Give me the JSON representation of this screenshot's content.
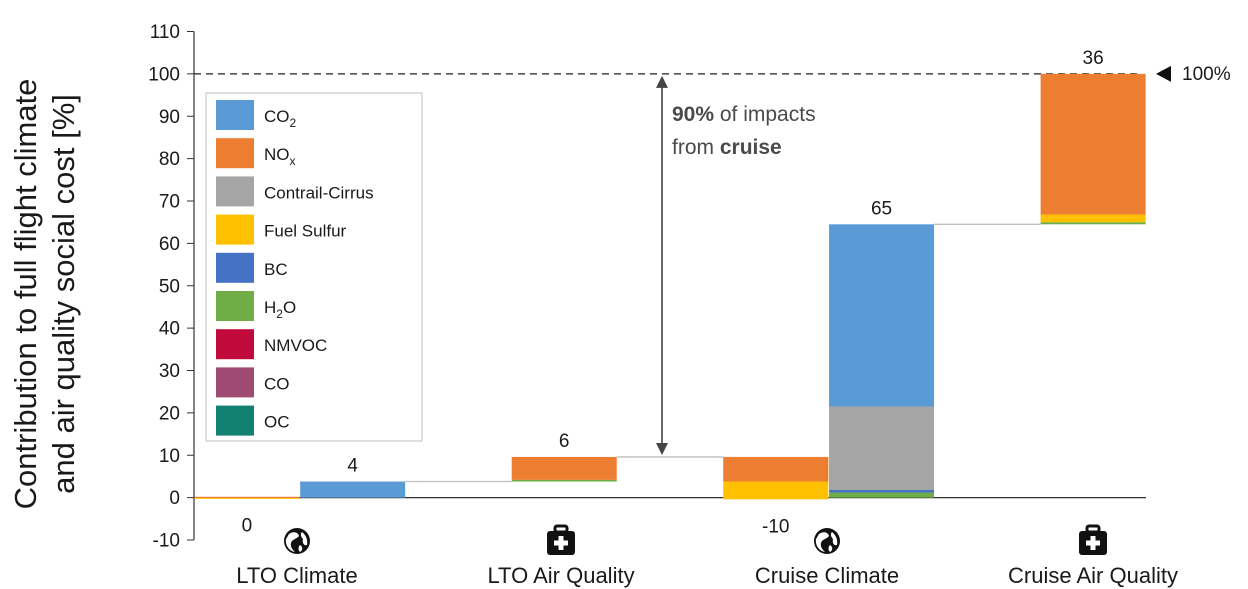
{
  "chart_data": {
    "type": "waterfall",
    "ylabel_line1": "Contribution to full flight climate",
    "ylabel_line2": "and air quality social cost [%]",
    "ylim": [
      -10,
      110
    ],
    "yticks": [
      "-10",
      "0",
      "10",
      "20",
      "30",
      "40",
      "50",
      "60",
      "70",
      "80",
      "90",
      "100",
      "110"
    ],
    "categories": [
      {
        "label": "LTO Climate",
        "icon": "globe-icon"
      },
      {
        "label": "LTO Air Quality",
        "icon": "medical-kit-icon"
      },
      {
        "label": "Cruise Climate",
        "icon": "globe-icon"
      },
      {
        "label": "Cruise Air Quality",
        "icon": "medical-kit-icon"
      }
    ],
    "species": [
      {
        "key": "co2",
        "label": "CO",
        "sub": "2",
        "color": "#5b9bd5"
      },
      {
        "key": "nox",
        "label": "NO",
        "sub": "x",
        "color": "#ed7d31"
      },
      {
        "key": "contrail",
        "label": "Contrail-Cirrus",
        "sub": "",
        "color": "#a5a5a5"
      },
      {
        "key": "sulfur",
        "label": "Fuel Sulfur",
        "sub": "",
        "color": "#ffc000"
      },
      {
        "key": "bc",
        "label": "BC",
        "sub": "",
        "color": "#4472c4"
      },
      {
        "key": "h2o",
        "label": "H",
        "sub": "2",
        "tail": "O",
        "color": "#70ad47"
      },
      {
        "key": "nmvoc",
        "label": "NMVOC",
        "sub": "",
        "color": "#c00a3c"
      },
      {
        "key": "co",
        "label": "CO",
        "sub": "",
        "color": "#9e4a72"
      },
      {
        "key": "oc",
        "label": "OC",
        "sub": "",
        "color": "#138074"
      }
    ],
    "bars": [
      {
        "slot": 0,
        "label": "0",
        "label_at": "below",
        "segments": [
          {
            "s": "sulfur",
            "from": 0,
            "to": -0.2
          },
          {
            "s": "nox",
            "from": 0,
            "to": 0.2
          }
        ]
      },
      {
        "slot": 1,
        "label": "4",
        "label_at": "above",
        "segments": [
          {
            "s": "co2",
            "from": 0,
            "to": 3.8
          }
        ]
      },
      {
        "slot": 3,
        "label": "6",
        "label_at": "above",
        "segments": [
          {
            "s": "h2o",
            "from": 3.8,
            "to": 4.2
          },
          {
            "s": "nox",
            "from": 4.2,
            "to": 9.6
          }
        ]
      },
      {
        "slot": 5,
        "label": "-10",
        "label_at": "below",
        "segments": [
          {
            "s": "sulfur",
            "from": 9.6,
            "to": 3.8
          },
          {
            "s": "nox",
            "from": 3.8,
            "to": 9.6
          },
          {
            "s": "sulfur",
            "from": -0.4,
            "to": 3.8
          }
        ]
      },
      {
        "slot": 6,
        "label": "65",
        "label_at": "above",
        "segments": [
          {
            "s": "h2o",
            "from": 0,
            "to": 1.2
          },
          {
            "s": "bc",
            "from": 1.2,
            "to": 1.8
          },
          {
            "s": "contrail",
            "from": 1.8,
            "to": 21.5
          },
          {
            "s": "co2",
            "from": 21.5,
            "to": 64.5
          }
        ]
      },
      {
        "slot": 8,
        "label": "36",
        "label_at": "above",
        "segments": [
          {
            "s": "h2o",
            "from": 64.5,
            "to": 65
          },
          {
            "s": "sulfur",
            "from": 65,
            "to": 66.8
          },
          {
            "s": "nox",
            "from": 66.8,
            "to": 100
          }
        ]
      }
    ],
    "connectors": [
      3.8,
      9.6,
      64.5
    ],
    "reference_value": 100,
    "reference_label": "100%",
    "annotation": {
      "bold": "90%",
      "text1": " of impacts",
      "text2": "from ",
      "bold2": "cruise",
      "from_value": 9.6,
      "to_value": 100
    }
  }
}
